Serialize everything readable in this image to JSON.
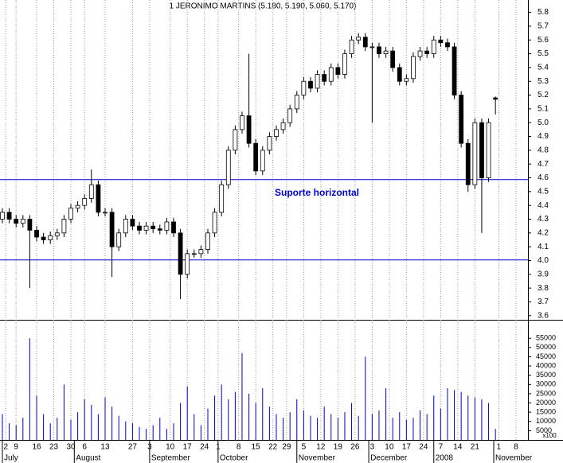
{
  "chart_data": {
    "type": "candlestick",
    "title": "1 JERONIMO MARTINS (5.180, 5.190, 5.060, 5.170)",
    "annotation": "Suporte horizontal",
    "up_color": "#ffffff",
    "down_color": "#000000",
    "line_color": "#0000cc",
    "volume_color": "#0000cc",
    "x": [
      0,
      2,
      4,
      6,
      8,
      10,
      12,
      14,
      16,
      18,
      20,
      22,
      24,
      26,
      28,
      30,
      32,
      34,
      36,
      38,
      40,
      42,
      44,
      46,
      48,
      50,
      52,
      54,
      56,
      58,
      60,
      62,
      64,
      66,
      68,
      70,
      72,
      74,
      76,
      78,
      80,
      82,
      84,
      86,
      88,
      90,
      92,
      94,
      96,
      98,
      100,
      102,
      104,
      106,
      108,
      110,
      112,
      114,
      116,
      118,
      120,
      122,
      124,
      126,
      128,
      130,
      132,
      134,
      136,
      138,
      140,
      142,
      144
    ],
    "open": [
      4.3,
      4.35,
      4.3,
      4.27,
      4.3,
      4.22,
      4.17,
      4.15,
      4.18,
      4.2,
      4.3,
      4.38,
      4.4,
      4.45,
      4.55,
      4.35,
      4.35,
      4.1,
      4.2,
      4.3,
      4.25,
      4.22,
      4.25,
      4.23,
      4.22,
      4.28,
      4.2,
      3.9,
      4.05,
      4.05,
      4.08,
      4.2,
      4.35,
      4.55,
      4.8,
      4.95,
      5.05,
      4.85,
      4.65,
      4.8,
      4.9,
      4.95,
      5.0,
      5.1,
      5.2,
      5.3,
      5.25,
      5.35,
      5.3,
      5.4,
      5.35,
      5.5,
      5.6,
      5.62,
      5.55,
      5.55,
      5.5,
      5.52,
      5.4,
      5.3,
      5.32,
      5.48,
      5.52,
      5.5,
      5.6,
      5.58,
      5.55,
      5.2,
      4.85,
      4.55,
      5.0,
      4.6,
      5.18
    ],
    "high": [
      4.38,
      4.38,
      4.33,
      4.33,
      4.33,
      4.25,
      4.2,
      4.21,
      4.23,
      4.33,
      4.41,
      4.43,
      4.48,
      4.66,
      4.58,
      4.38,
      4.38,
      4.23,
      4.33,
      4.33,
      4.28,
      4.28,
      4.28,
      4.26,
      4.31,
      4.31,
      4.23,
      4.08,
      4.08,
      4.11,
      4.23,
      4.38,
      4.58,
      4.83,
      4.98,
      5.08,
      5.5,
      4.88,
      4.83,
      4.93,
      4.98,
      5.03,
      5.13,
      5.23,
      5.33,
      5.33,
      5.38,
      5.38,
      5.43,
      5.43,
      5.53,
      5.63,
      5.65,
      5.65,
      5.58,
      5.58,
      5.55,
      5.55,
      5.43,
      5.35,
      5.51,
      5.55,
      5.55,
      5.63,
      5.63,
      5.61,
      5.58,
      5.23,
      4.88,
      5.03,
      5.03,
      5.03,
      5.19
    ],
    "low": [
      4.27,
      4.27,
      4.24,
      4.24,
      3.8,
      4.14,
      4.12,
      4.12,
      4.15,
      4.17,
      4.27,
      4.35,
      4.37,
      4.42,
      4.32,
      4.32,
      3.88,
      4.07,
      4.17,
      4.22,
      4.19,
      4.19,
      4.2,
      4.19,
      4.19,
      4.17,
      3.72,
      3.87,
      4.02,
      4.02,
      4.05,
      4.17,
      4.32,
      4.52,
      4.77,
      4.92,
      4.82,
      4.62,
      4.62,
      4.77,
      4.87,
      4.92,
      4.97,
      5.07,
      5.17,
      5.22,
      5.22,
      5.27,
      5.27,
      5.32,
      5.32,
      5.47,
      5.57,
      5.52,
      5.0,
      5.47,
      5.47,
      5.37,
      5.27,
      5.27,
      5.29,
      5.45,
      5.47,
      5.47,
      5.55,
      5.52,
      5.17,
      4.82,
      4.5,
      4.52,
      4.2,
      4.57,
      5.06
    ],
    "close": [
      4.35,
      4.3,
      4.27,
      4.3,
      4.22,
      4.17,
      4.15,
      4.18,
      4.2,
      4.3,
      4.38,
      4.4,
      4.45,
      4.55,
      4.35,
      4.35,
      4.1,
      4.2,
      4.3,
      4.25,
      4.22,
      4.25,
      4.23,
      4.22,
      4.28,
      4.2,
      3.9,
      4.05,
      4.05,
      4.08,
      4.2,
      4.35,
      4.55,
      4.8,
      4.95,
      5.05,
      4.85,
      4.65,
      4.8,
      4.9,
      4.95,
      5.0,
      5.1,
      5.2,
      5.3,
      5.25,
      5.35,
      5.3,
      5.4,
      5.35,
      5.5,
      5.6,
      5.62,
      5.55,
      5.55,
      5.5,
      5.52,
      5.4,
      5.3,
      5.32,
      5.48,
      5.52,
      5.5,
      5.6,
      5.58,
      5.55,
      5.2,
      4.85,
      4.55,
      5.0,
      4.6,
      5.0,
      5.17
    ],
    "volume": [
      14000,
      9000,
      8000,
      12000,
      55000,
      24000,
      14000,
      9000,
      12000,
      30000,
      11000,
      15000,
      22000,
      19000,
      14000,
      23000,
      18000,
      13000,
      10000,
      9000,
      7000,
      6000,
      8000,
      12000,
      6000,
      9000,
      20000,
      29000,
      14000,
      8000,
      17000,
      24000,
      30000,
      22000,
      26000,
      47000,
      25000,
      20000,
      28000,
      18000,
      14000,
      12000,
      15000,
      22000,
      16000,
      13000,
      12000,
      18000,
      14000,
      12000,
      15000,
      20000,
      13000,
      45000,
      14000,
      16000,
      28000,
      12000,
      15000,
      11000,
      12000,
      16000,
      14000,
      24000,
      17000,
      28000,
      27000,
      26000,
      24000,
      23000,
      22000,
      20000,
      6000
    ],
    "xlim": [
      -0.7,
      153.5
    ],
    "ylim": [
      3.57,
      5.89
    ],
    "yticks": [
      3.6,
      3.7,
      3.8,
      3.9,
      {
        "value": 4,
        "label": "4.0"
      },
      4.1,
      4.2,
      4.3,
      4.4,
      4.5,
      4.6,
      4.7,
      4.8,
      4.9,
      {
        "value": 5,
        "label": "5.0"
      },
      5.1,
      5.2,
      5.3,
      5.4,
      5.5,
      5.6,
      5.7,
      5.8
    ],
    "volume_ylim": [
      0,
      65000
    ],
    "volume_ticks": [
      5000,
      10000,
      15000,
      20000,
      25000,
      30000,
      35000,
      40000,
      45000,
      50000,
      55000
    ],
    "volume_unit": "x100",
    "hlines": [
      4.587,
      4.004
    ],
    "xticks": [
      {
        "value": 1,
        "label": "2"
      },
      {
        "value": 4,
        "label": "9"
      },
      {
        "value": 10,
        "label": "16"
      },
      {
        "value": 15,
        "label": "23"
      },
      {
        "value": 20,
        "label": "30"
      },
      {
        "value": 24,
        "label": "6"
      },
      {
        "value": 30,
        "label": "13"
      },
      {
        "value": 38,
        "label": "27"
      },
      {
        "value": 43,
        "label": "3"
      },
      {
        "value": 49,
        "label": "10"
      },
      {
        "value": 54,
        "label": "17"
      },
      {
        "value": 59,
        "label": "24"
      },
      {
        "value": 63,
        "label": "1"
      },
      {
        "value": 69,
        "label": "8"
      },
      {
        "value": 74,
        "label": "15"
      },
      {
        "value": 79,
        "label": "22"
      },
      {
        "value": 83,
        "label": "29"
      },
      {
        "value": 88,
        "label": "5"
      },
      {
        "value": 93,
        "label": "12"
      },
      {
        "value": 98,
        "label": "19"
      },
      {
        "value": 103,
        "label": "26"
      },
      {
        "value": 108,
        "label": "3"
      },
      {
        "value": 113,
        "label": "10"
      },
      {
        "value": 118,
        "label": "17"
      },
      {
        "value": 123,
        "label": "24"
      },
      {
        "value": 128,
        "label": "7"
      },
      {
        "value": 133,
        "label": "14"
      },
      {
        "value": 138,
        "label": "21"
      },
      {
        "value": 145,
        "label": "1"
      },
      {
        "value": 150,
        "label": "8"
      }
    ],
    "month_ticks": [
      {
        "value": 0,
        "label": "July"
      },
      {
        "value": 21,
        "label": "August"
      },
      {
        "value": 43,
        "label": "September"
      },
      {
        "value": 63,
        "label": "October"
      },
      {
        "value": 86,
        "label": "November"
      },
      {
        "value": 107,
        "label": "December"
      },
      {
        "value": 126,
        "label": "2008"
      },
      {
        "value": 143.5,
        "label": "November"
      }
    ],
    "grid": true
  }
}
